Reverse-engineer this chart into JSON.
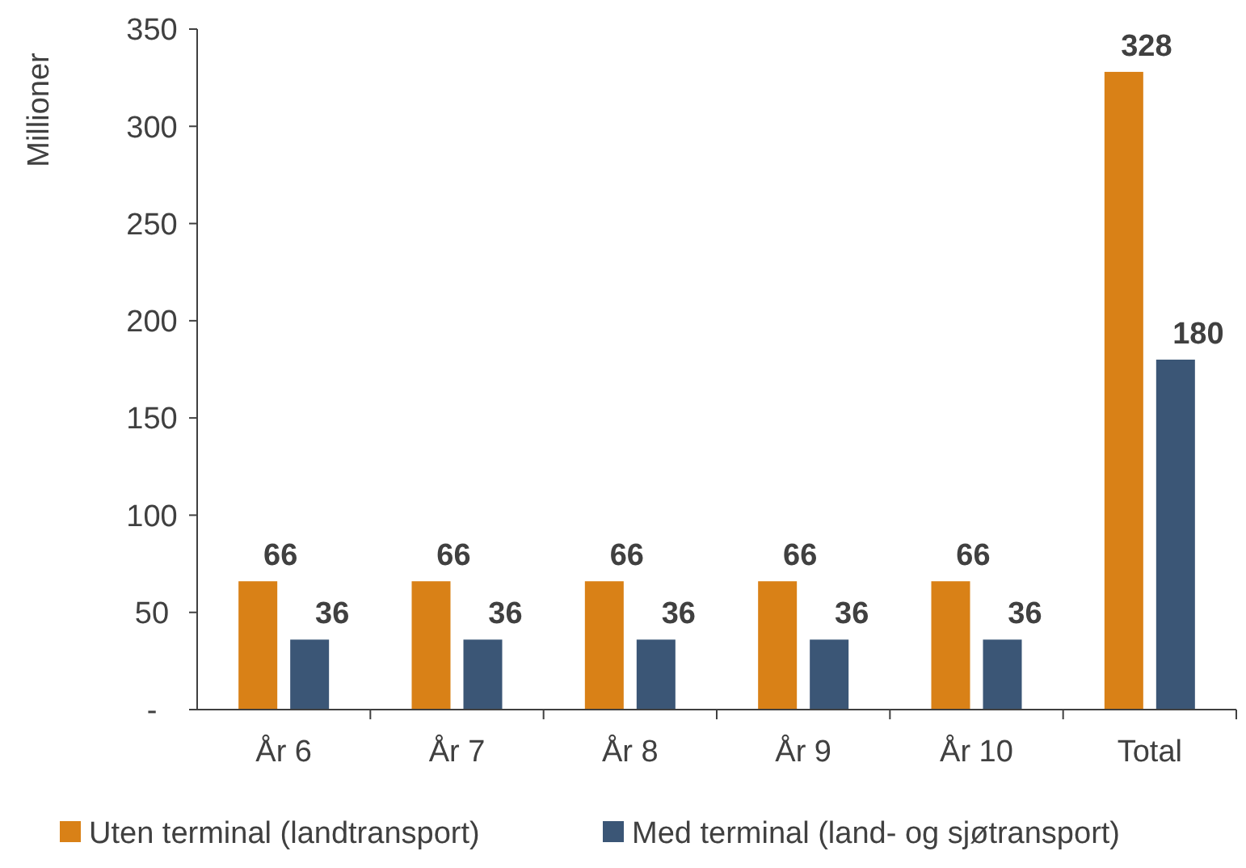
{
  "chart_data": {
    "type": "bar",
    "ylabel": "Millioner",
    "categories": [
      "År 6",
      "År 7",
      "År 8",
      "År 9",
      "År 10",
      "Total"
    ],
    "series": [
      {
        "name": "Uten terminal (landtransport)",
        "color": "#d98117",
        "values": [
          66,
          66,
          66,
          66,
          66,
          328
        ]
      },
      {
        "name": "Med terminal (land- og sjøtransport)",
        "color": "#3b5676",
        "values": [
          36,
          36,
          36,
          36,
          36,
          180
        ]
      }
    ],
    "ylim": [
      0,
      350
    ],
    "yticks": [
      {
        "value": 0,
        "label": "-"
      },
      50,
      100,
      150,
      200,
      250,
      300,
      350
    ],
    "grid": false,
    "legend": "bottom",
    "data_labels": true
  }
}
